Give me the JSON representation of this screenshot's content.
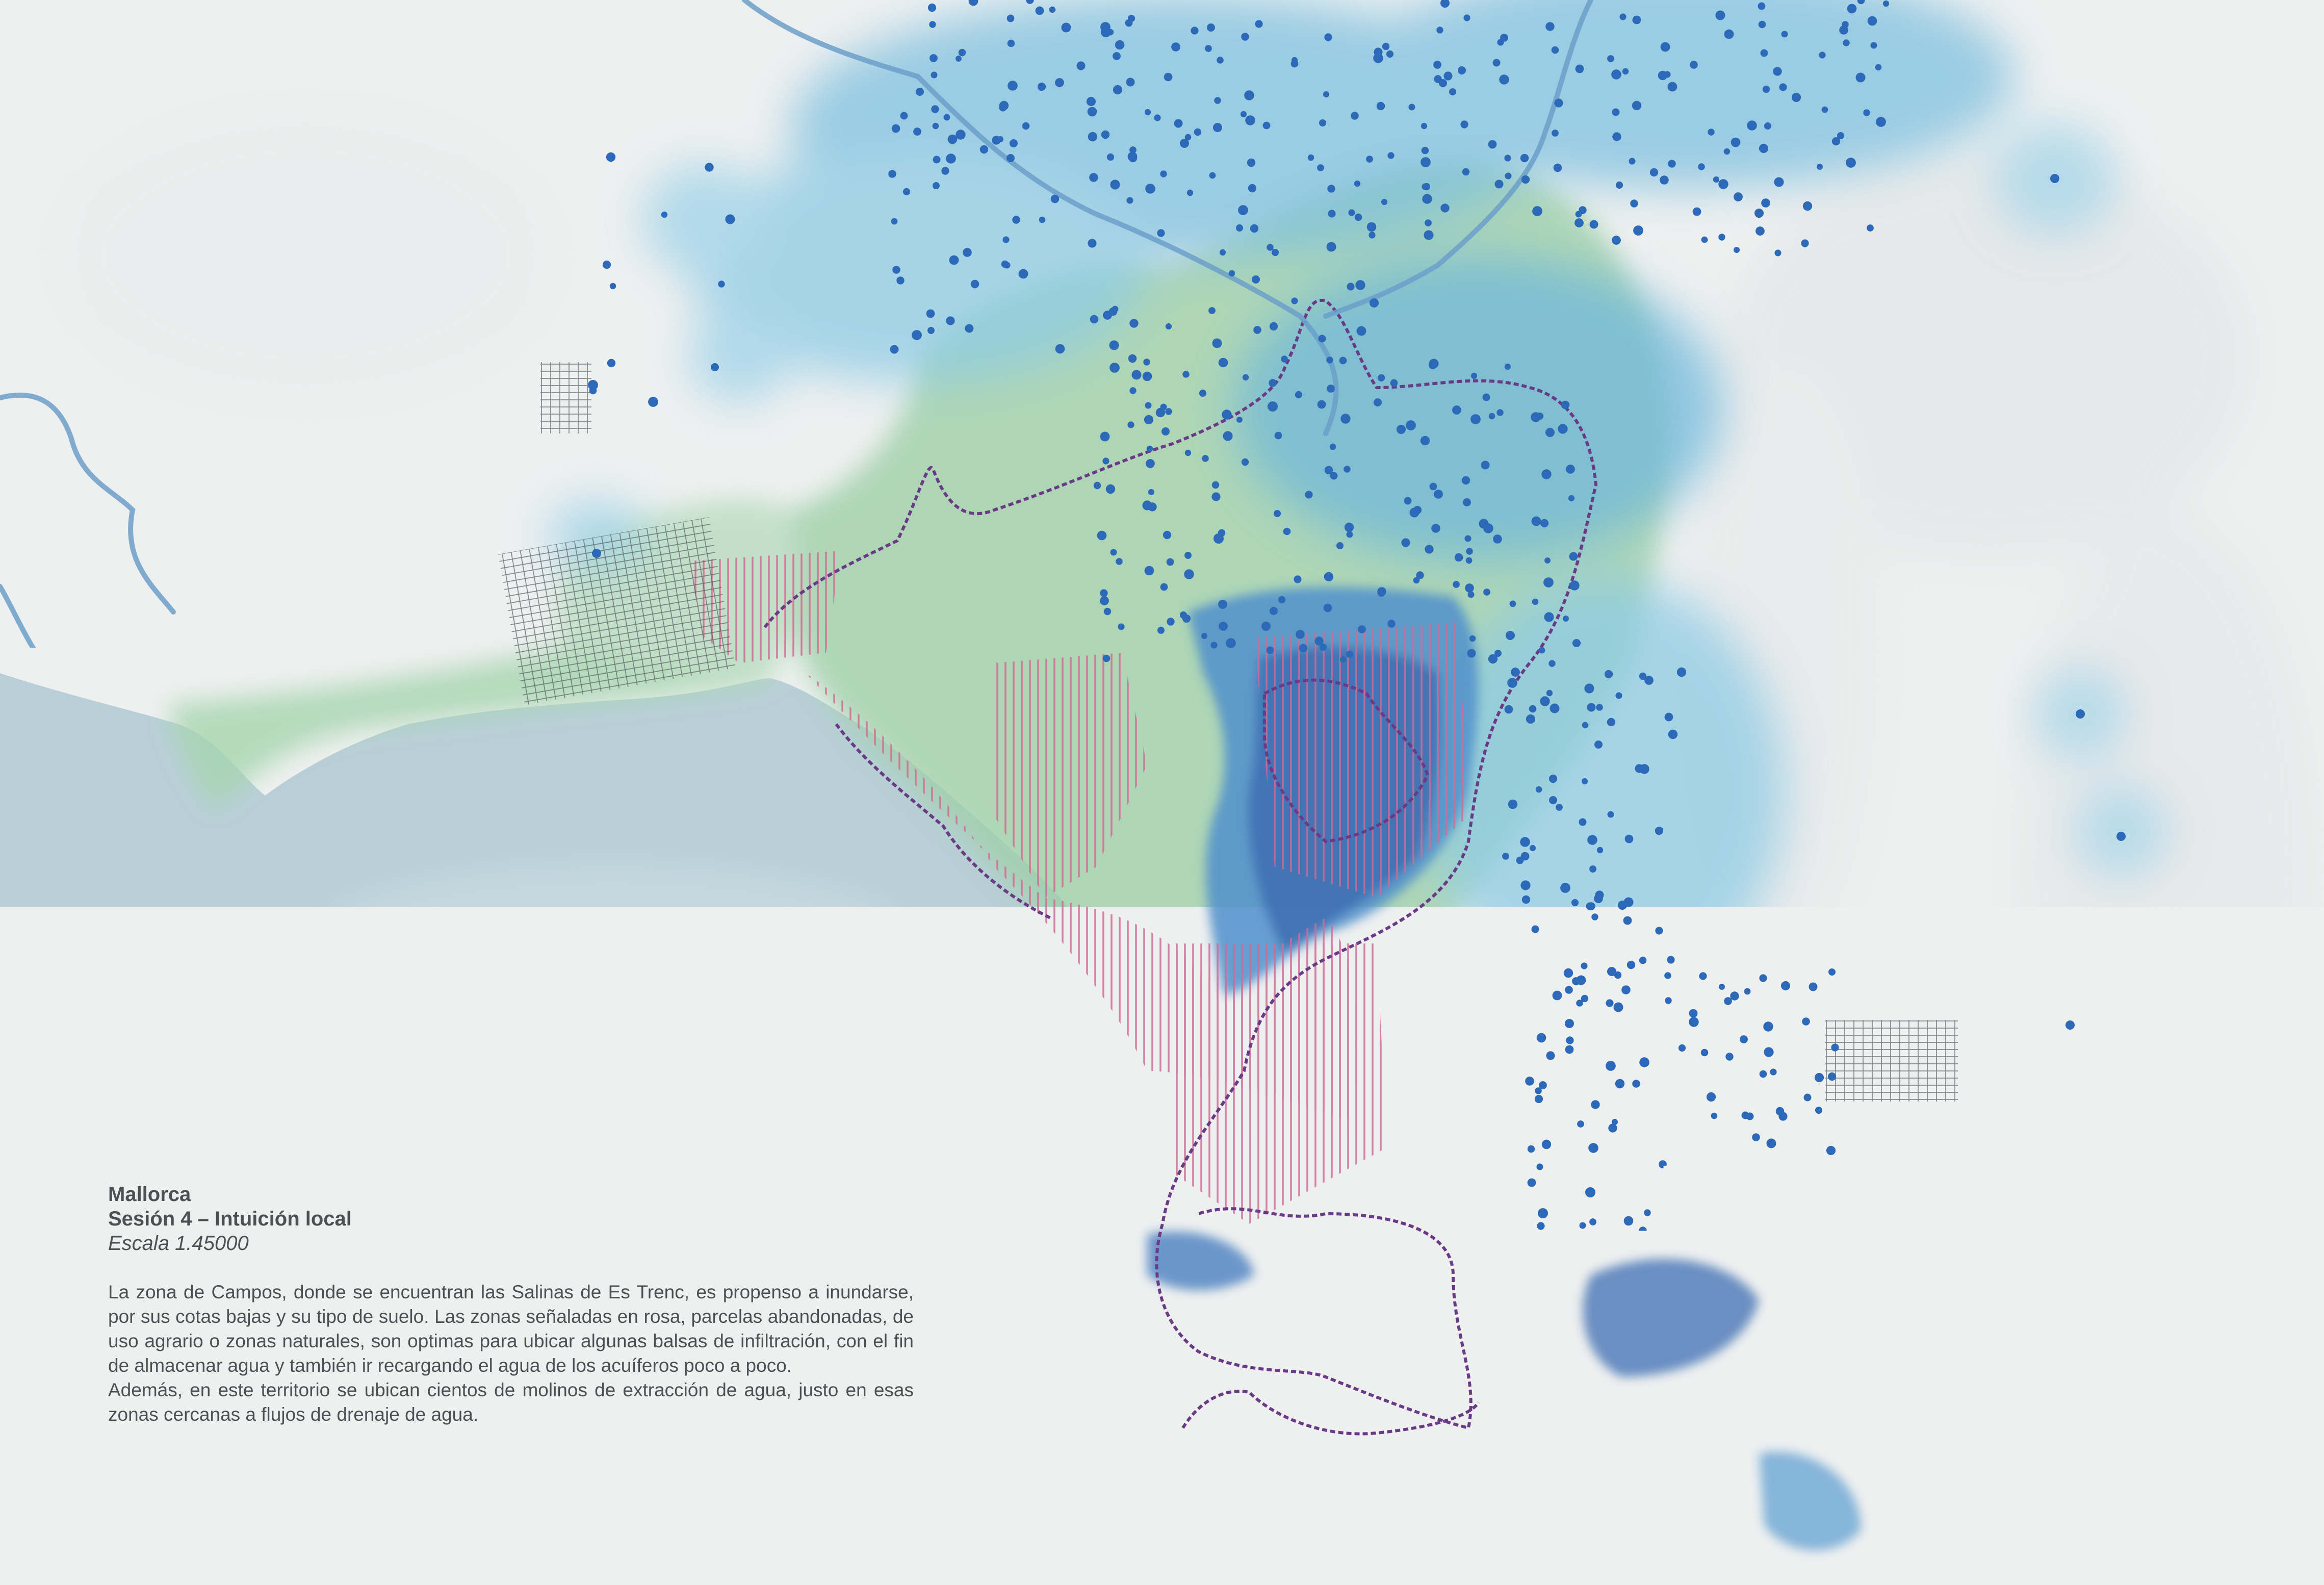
{
  "map": {
    "region": "Mallorca",
    "session": "Sesión 4 – Intuición local",
    "scale": "Escala 1.45000",
    "paragraphs": [
      "La zona de Campos, donde se encuentran las Salinas de Es Trenc, es propenso a inundarse, por sus cotas bajas y su tipo de suelo. Las zonas señaladas en rosa, parcelas abandonadas, de uso agrario o zonas naturales, son optimas para ubicar algunas balsas de infiltración, con el fin de almacenar agua y también ir recargando el agua de los acuíferos poco a poco.",
      "Además, en este territorio se ubican cientos de molinos de extracción de agua, justo en esas zonas cercanas a flujos de drenaje de agua."
    ]
  },
  "colors": {
    "sea": "#b9cfd8",
    "land": "#eef0f0",
    "green_zone": "#9fd0a8",
    "blue_zone": "#57a9cf",
    "deep_blue": "#3f6fb3",
    "pink_hatch": "#d16c94",
    "boundary": "#6a3a86",
    "wind_mill_dot": "#2c69b8",
    "river": "#6c9fc9"
  },
  "icons": {
    "well": "dot-icon",
    "urban": "street-grid-icon"
  }
}
